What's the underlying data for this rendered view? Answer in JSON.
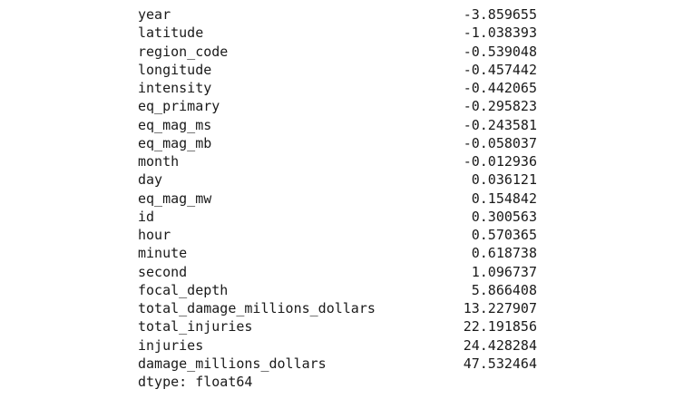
{
  "series": {
    "rows": [
      {
        "label": "year",
        "value": "-3.859655"
      },
      {
        "label": "latitude",
        "value": "-1.038393"
      },
      {
        "label": "region_code",
        "value": "-0.539048"
      },
      {
        "label": "longitude",
        "value": "-0.457442"
      },
      {
        "label": "intensity",
        "value": "-0.442065"
      },
      {
        "label": "eq_primary",
        "value": "-0.295823"
      },
      {
        "label": "eq_mag_ms",
        "value": "-0.243581"
      },
      {
        "label": "eq_mag_mb",
        "value": "-0.058037"
      },
      {
        "label": "month",
        "value": "-0.012936"
      },
      {
        "label": "day",
        "value": "0.036121"
      },
      {
        "label": "eq_mag_mw",
        "value": "0.154842"
      },
      {
        "label": "id",
        "value": "0.300563"
      },
      {
        "label": "hour",
        "value": "0.570365"
      },
      {
        "label": "minute",
        "value": "0.618738"
      },
      {
        "label": "second",
        "value": "1.096737"
      },
      {
        "label": "focal_depth",
        "value": "5.866408"
      },
      {
        "label": "total_damage_millions_dollars",
        "value": "13.227907"
      },
      {
        "label": "total_injuries",
        "value": "22.191856"
      },
      {
        "label": "injuries",
        "value": "24.428284"
      },
      {
        "label": "damage_millions_dollars",
        "value": "47.532464"
      }
    ],
    "dtype_line": "dtype: float64"
  }
}
